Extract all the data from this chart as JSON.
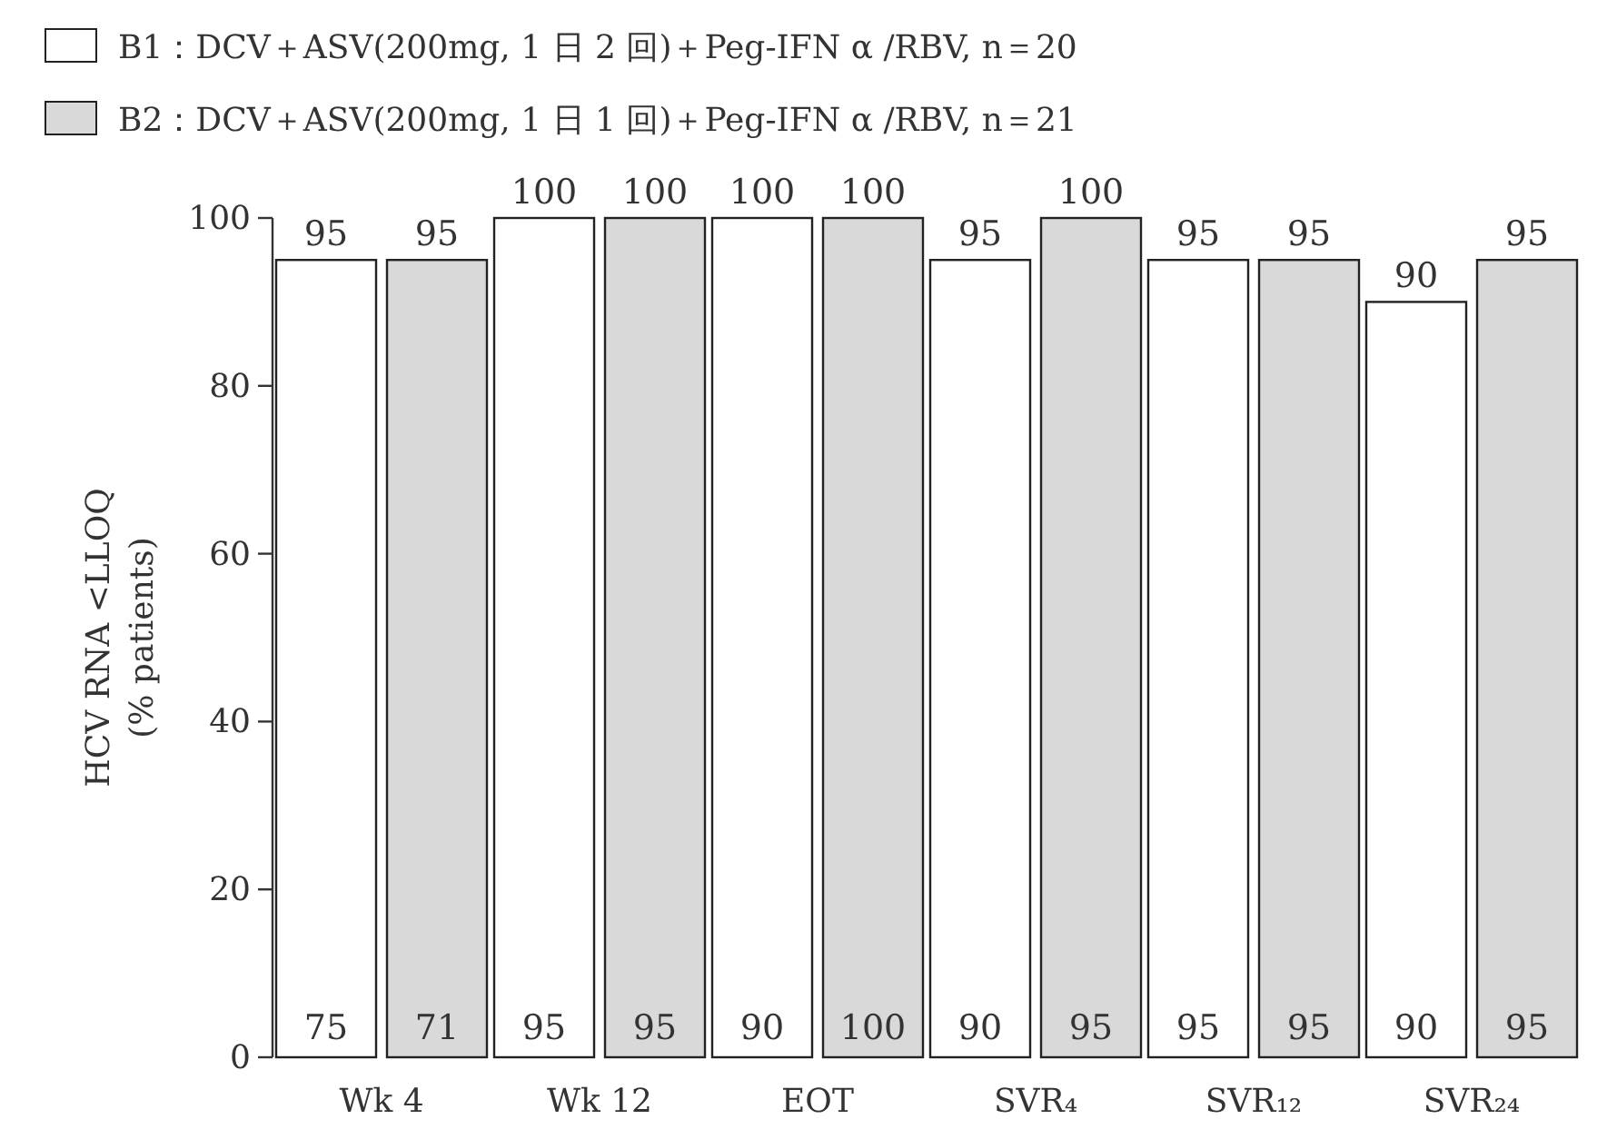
{
  "chart_data": {
    "type": "bar",
    "ylabel": "HCV RNA <LLOQ\n(% patients)",
    "categories": [
      "Wk 4",
      "Wk 12",
      "EOT",
      "SVR₄",
      "SVR₁₂",
      "SVR₂₄"
    ],
    "series": [
      {
        "name": "B1：DCV＋ASV(200mg, 1 日 2 回)＋Peg-IFN α /RBV,  n＝20",
        "color": "#ffffff",
        "values": [
          95,
          100,
          100,
          95,
          95,
          90
        ]
      },
      {
        "name": "B2：DCV＋ASV(200mg, 1 日 1 回)＋Peg-IFN α /RBV,  n＝21",
        "color": "#d9d9d9",
        "values": [
          95,
          100,
          100,
          100,
          95,
          95
        ]
      }
    ],
    "ylim": [
      0,
      100
    ],
    "yticks": [
      0,
      20,
      40,
      60,
      80,
      100
    ],
    "data_labels": true,
    "legend": "top left",
    "annotations": [
      {
        "text": "75",
        "x": "Wk 4",
        "y": 0
      },
      {
        "text": "71",
        "x": "Wk 4",
        "y": 0
      },
      {
        "text": "95",
        "x": "Wk 12",
        "y": 0
      },
      {
        "text": "95",
        "x": "Wk 12",
        "y": 0
      },
      {
        "text": "90",
        "x": "EOT",
        "y": 0
      },
      {
        "text": "100",
        "x": "EOT",
        "y": 0
      },
      {
        "text": "90",
        "x": "SVR₄",
        "y": 0
      },
      {
        "text": "95",
        "x": "SVR₄",
        "y": 0
      },
      {
        "text": "95",
        "x": "SVR₁₂",
        "y": 0
      },
      {
        "text": "95",
        "x": "SVR₁₂",
        "y": 0
      },
      {
        "text": "90",
        "x": "SVR₂₄",
        "y": 0
      },
      {
        "text": "95",
        "x": "SVR₂₄",
        "y": 0
      }
    ]
  }
}
